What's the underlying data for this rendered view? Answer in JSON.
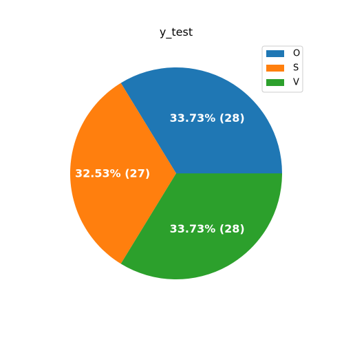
{
  "chart_data": {
    "type": "pie",
    "title": "y_test",
    "categories": [
      "O",
      "S",
      "V"
    ],
    "values": [
      28,
      27,
      28
    ],
    "percent_labels": [
      "33.73%",
      "32.53%",
      "33.73%"
    ],
    "colors": [
      "#1f77b4",
      "#ff7f0e",
      "#2ca02c"
    ],
    "start_angle_deg": 0,
    "direction": "counterclockwise",
    "legend_position": "upper right",
    "label_color": "#ffffff",
    "label_weight": "bold"
  }
}
